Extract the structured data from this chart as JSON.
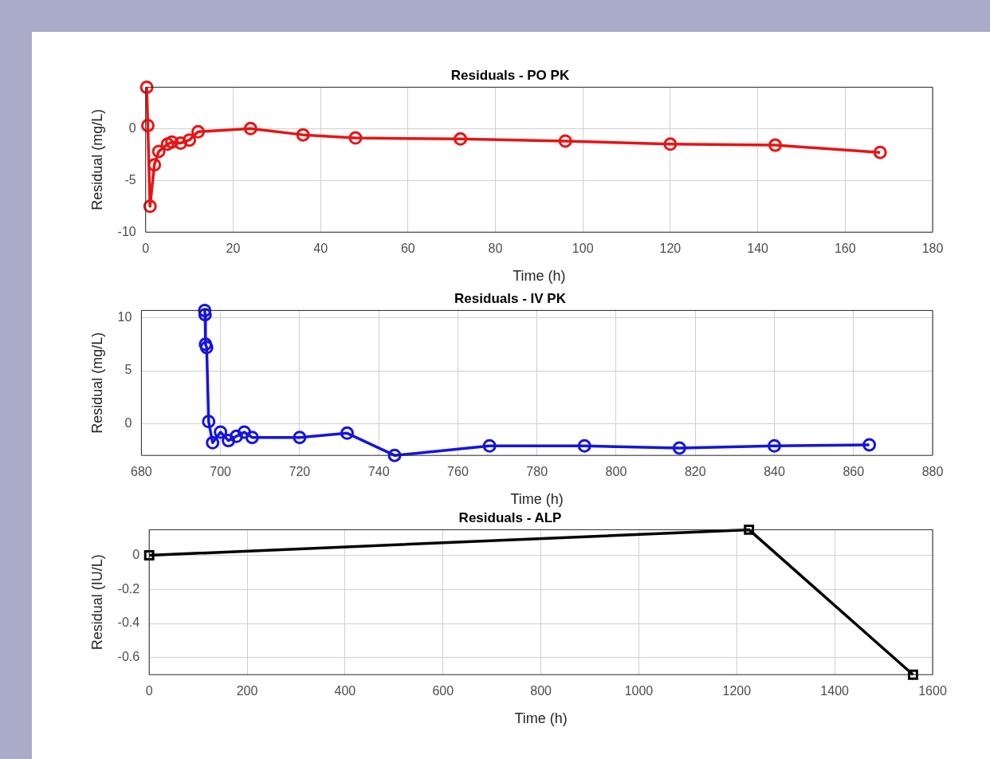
{
  "chart_data": [
    {
      "type": "line",
      "title": "Residuals - PO PK",
      "xlabel": "Time (h)",
      "ylabel": "Residual (mg/L)",
      "xlim": [
        0,
        180
      ],
      "xticks": [
        0,
        20,
        40,
        60,
        80,
        100,
        120,
        140,
        160,
        180
      ],
      "ylim": [
        -10,
        4
      ],
      "yticks": [
        -10,
        -5,
        0
      ],
      "grid": true,
      "marker": "circle",
      "line_style": "solid",
      "series": [
        {
          "color": "#e81414",
          "x": [
            0.25,
            0.5,
            1,
            2,
            3,
            5,
            6,
            8,
            10,
            12,
            24,
            36,
            48,
            72,
            96,
            120,
            144,
            168
          ],
          "values": [
            4,
            0.3,
            -7.5,
            -3.5,
            -2.2,
            -1.5,
            -1.3,
            -1.4,
            -1.1,
            -0.3,
            0,
            -0.6,
            -0.9,
            -1,
            -1.2,
            -1.5,
            -1.6,
            -2.3
          ]
        }
      ]
    },
    {
      "type": "line",
      "title": "Residuals - IV PK",
      "xlabel": "Time (h)",
      "ylabel": "Residual (mg/L)",
      "xlim": [
        680,
        880
      ],
      "xticks": [
        680,
        700,
        720,
        740,
        760,
        780,
        800,
        820,
        840,
        860,
        880
      ],
      "ylim": [
        -3,
        10.7
      ],
      "yticks": [
        0,
        5,
        10
      ],
      "grid": true,
      "marker": "circle",
      "line_style": "solid",
      "series": [
        {
          "color": "#1414e0",
          "x": [
            696,
            696.1,
            696.2,
            696.5,
            697,
            698,
            700,
            702,
            704,
            706,
            708,
            720,
            732,
            744,
            768,
            792,
            816,
            840,
            864
          ],
          "values": [
            10.7,
            10.3,
            7.5,
            7.2,
            0.2,
            -1.8,
            -0.8,
            -1.6,
            -1.2,
            -0.8,
            -1.3,
            -1.3,
            -0.9,
            -3,
            -2.1,
            -2.1,
            -2.3,
            -2.1,
            -2
          ]
        }
      ]
    },
    {
      "type": "line",
      "title": "Residuals - ALP",
      "xlabel": "Time (h)",
      "ylabel": "Residual (IU/L)",
      "xlim": [
        0,
        1600
      ],
      "xticks": [
        0,
        200,
        400,
        600,
        800,
        1000,
        1200,
        1400,
        1600
      ],
      "ylim": [
        -0.7,
        0.15
      ],
      "yticks": [
        -0.6,
        -0.4,
        -0.2,
        0
      ],
      "grid": true,
      "marker": "square",
      "line_style": "solid",
      "series": [
        {
          "color": "#000000",
          "x": [
            0,
            1225,
            1560
          ],
          "values": [
            0,
            0.15,
            -0.7
          ]
        }
      ]
    }
  ]
}
